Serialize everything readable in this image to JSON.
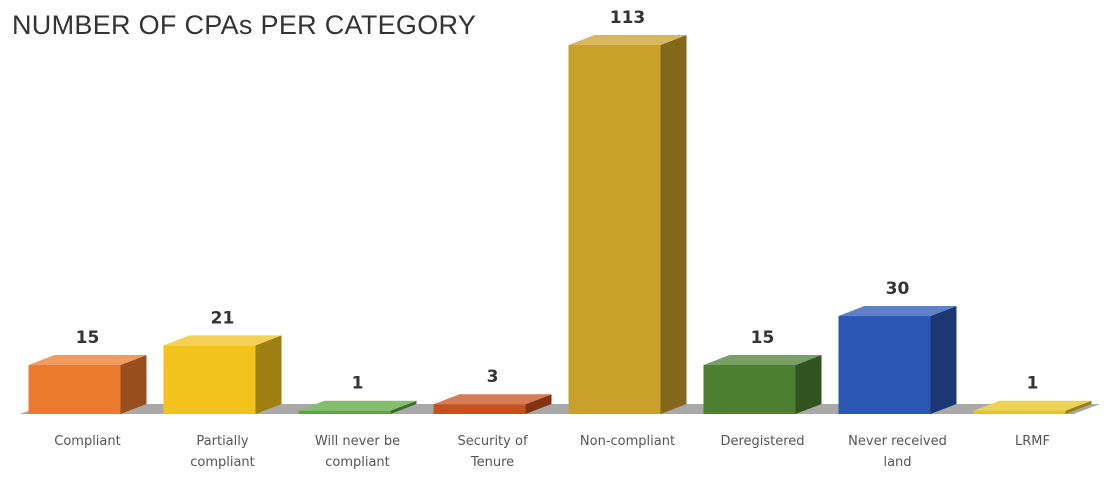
{
  "chart_data": {
    "type": "bar",
    "title": "NUMBER OF CPAs PER CATEGORY",
    "xlabel": "",
    "ylabel": "",
    "ylim": [
      0,
      113
    ],
    "grid": false,
    "legend": "none",
    "style": "3d",
    "categories": [
      [
        "Compliant"
      ],
      [
        "Partially",
        "compliant"
      ],
      [
        "Will never be",
        "compliant"
      ],
      [
        "Security of",
        "Tenure"
      ],
      [
        "Non-compliant"
      ],
      [
        "Deregistered"
      ],
      [
        "Never received",
        "land"
      ],
      [
        "LRMF"
      ]
    ],
    "values": [
      15,
      21,
      1,
      3,
      113,
      15,
      30,
      1
    ],
    "colors": [
      "#ec7a2c",
      "#f2c31c",
      "#5aa83c",
      "#c8501c",
      "#c9a02a",
      "#4c8030",
      "#2a56b4",
      "#e8c41c"
    ]
  }
}
